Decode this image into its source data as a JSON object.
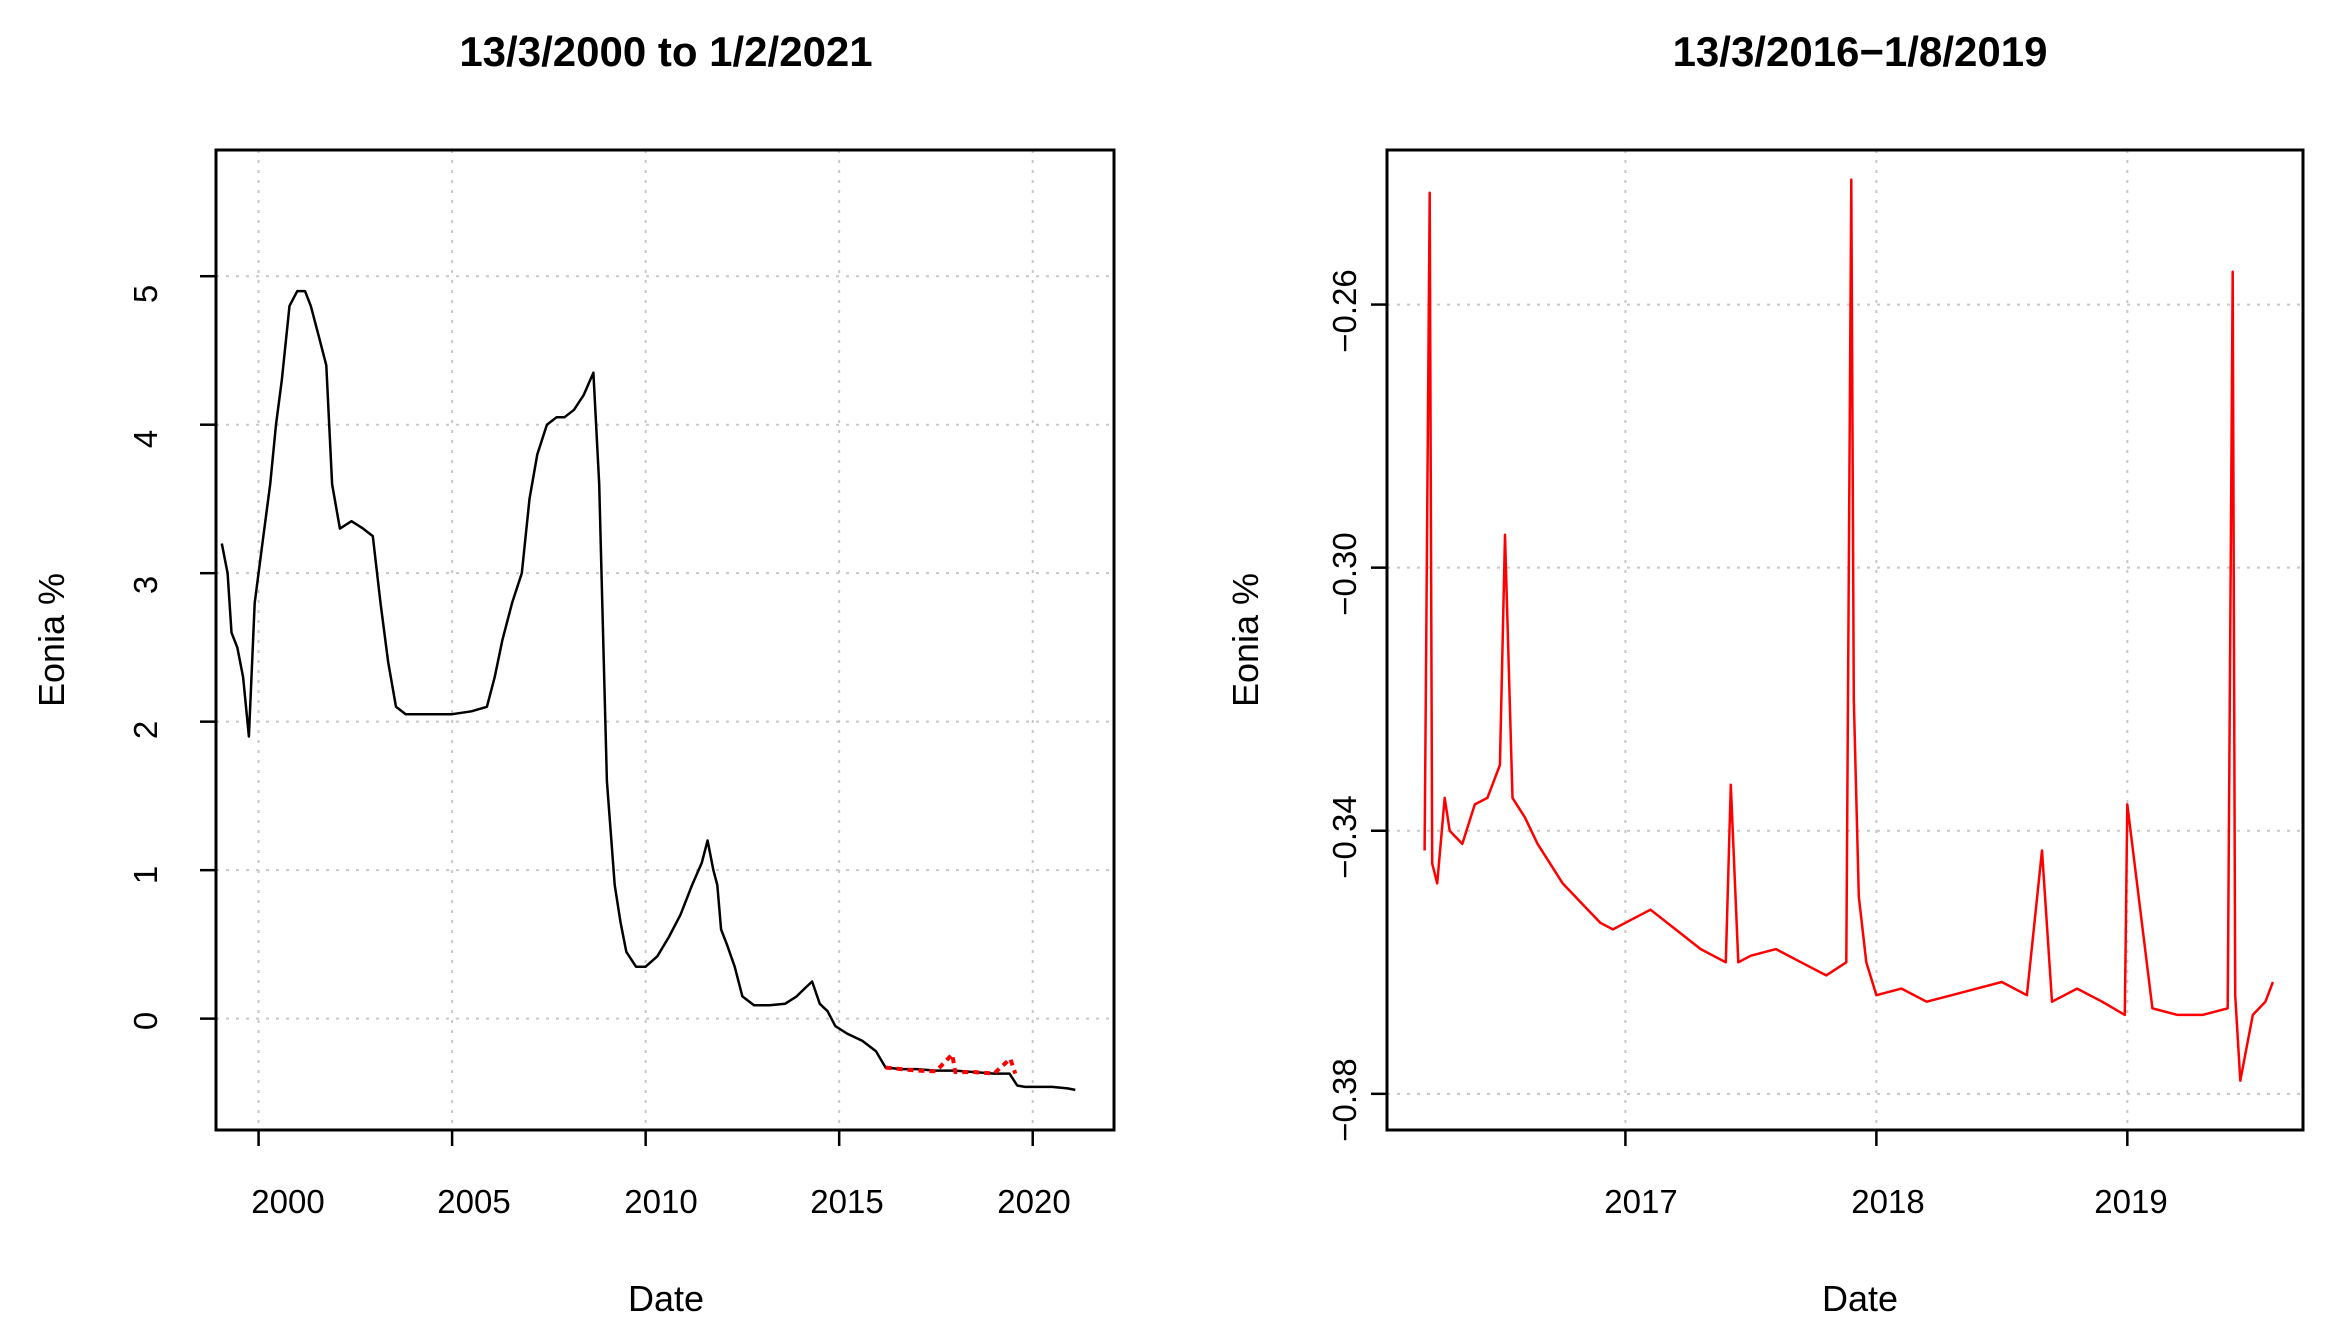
{
  "figure": {
    "background": "#ffffff"
  },
  "chart_data": [
    {
      "type": "line",
      "title": "13/3/2000 to 1/2/2021",
      "xlabel": "Date",
      "ylabel": "Eonia %",
      "xlim": [
        1998.9,
        2022.1
      ],
      "ylim": [
        -0.75,
        5.85
      ],
      "x_ticks": [
        2000,
        2005,
        2010,
        2015,
        2020
      ],
      "x_tick_labels": [
        "2000",
        "2005",
        "2010",
        "2015",
        "2020"
      ],
      "y_ticks": [
        0,
        1,
        2,
        3,
        4,
        5
      ],
      "y_tick_labels": [
        "0",
        "1",
        "2",
        "3",
        "4",
        "5"
      ],
      "grid": true,
      "series": [
        {
          "color": "#000000",
          "x": [
            1999.05,
            1999.2,
            1999.3,
            1999.45,
            1999.6,
            1999.75,
            1999.9,
            2000.1,
            2000.3,
            2000.45,
            2000.6,
            2000.8,
            2001.0,
            2001.2,
            2001.35,
            2001.55,
            2001.75,
            2001.9,
            2002.1,
            2002.4,
            2002.7,
            2002.95,
            2003.15,
            2003.35,
            2003.55,
            2003.8,
            2004.0,
            2004.5,
            2005.0,
            2005.5,
            2005.9,
            2006.1,
            2006.3,
            2006.55,
            2006.8,
            2007.0,
            2007.2,
            2007.45,
            2007.7,
            2007.9,
            2008.15,
            2008.4,
            2008.65,
            2008.8,
            2008.92,
            2009.0,
            2009.1,
            2009.2,
            2009.35,
            2009.5,
            2009.75,
            2010.0,
            2010.3,
            2010.6,
            2010.9,
            2011.2,
            2011.45,
            2011.6,
            2011.75,
            2011.85,
            2011.95,
            2012.1,
            2012.3,
            2012.5,
            2012.8,
            2013.2,
            2013.6,
            2013.9,
            2014.1,
            2014.3,
            2014.5,
            2014.7,
            2014.9,
            2015.2,
            2015.6,
            2015.95,
            2016.2,
            2016.6,
            2017.0,
            2017.5,
            2018.0,
            2018.5,
            2019.0,
            2019.4,
            2019.6,
            2019.8,
            2020.1,
            2020.5,
            2020.9,
            2021.1
          ],
          "y": [
            3.2,
            3.0,
            2.6,
            2.5,
            2.3,
            1.9,
            2.8,
            3.2,
            3.6,
            4.0,
            4.3,
            4.8,
            4.9,
            4.9,
            4.8,
            4.6,
            4.4,
            3.6,
            3.3,
            3.35,
            3.3,
            3.25,
            2.8,
            2.4,
            2.1,
            2.05,
            2.05,
            2.05,
            2.05,
            2.07,
            2.1,
            2.3,
            2.55,
            2.8,
            3.0,
            3.5,
            3.8,
            4.0,
            4.05,
            4.05,
            4.1,
            4.2,
            4.35,
            3.6,
            2.4,
            1.6,
            1.25,
            0.9,
            0.65,
            0.45,
            0.35,
            0.35,
            0.42,
            0.55,
            0.7,
            0.9,
            1.05,
            1.2,
            1.0,
            0.9,
            0.6,
            0.5,
            0.35,
            0.15,
            0.09,
            0.09,
            0.1,
            0.15,
            0.2,
            0.25,
            0.1,
            0.05,
            -0.05,
            -0.1,
            -0.15,
            -0.22,
            -0.33,
            -0.34,
            -0.34,
            -0.35,
            -0.35,
            -0.36,
            -0.37,
            -0.37,
            -0.45,
            -0.46,
            -0.46,
            -0.46,
            -0.47,
            -0.48
          ]
        },
        {
          "color": "#ff0000",
          "x": [
            2016.2,
            2016.6,
            2017.0,
            2017.5,
            2017.92,
            2018.0,
            2018.5,
            2019.0,
            2019.42,
            2019.55
          ],
          "y": [
            -0.33,
            -0.34,
            -0.35,
            -0.355,
            -0.24,
            -0.36,
            -0.36,
            -0.37,
            -0.27,
            -0.37
          ]
        }
      ]
    },
    {
      "type": "line",
      "title": "13/3/2016−1/8/2019",
      "xlabel": "Date",
      "ylabel": "Eonia %",
      "xlim": [
        2016.05,
        2019.7
      ],
      "ylim": [
        -0.3855,
        -0.2365
      ],
      "x_ticks": [
        2017,
        2018,
        2019
      ],
      "x_tick_labels": [
        "2017",
        "2018",
        "2019"
      ],
      "y_ticks": [
        -0.38,
        -0.34,
        -0.3,
        -0.26
      ],
      "y_tick_labels": [
        "−0.38",
        "−0.34",
        "−0.30",
        "−0.26"
      ],
      "grid": true,
      "series": [
        {
          "color": "#ff0000",
          "x": [
            2016.2,
            2016.22,
            2016.23,
            2016.25,
            2016.28,
            2016.3,
            2016.35,
            2016.4,
            2016.45,
            2016.5,
            2016.52,
            2016.55,
            2016.6,
            2016.65,
            2016.7,
            2016.75,
            2016.8,
            2016.85,
            2016.9,
            2016.95,
            2017.0,
            2017.1,
            2017.2,
            2017.3,
            2017.4,
            2017.42,
            2017.45,
            2017.5,
            2017.6,
            2017.7,
            2017.8,
            2017.88,
            2017.9,
            2017.91,
            2017.93,
            2017.96,
            2018.0,
            2018.1,
            2018.2,
            2018.3,
            2018.4,
            2018.5,
            2018.6,
            2018.66,
            2018.7,
            2018.8,
            2018.9,
            2018.99,
            2019.0,
            2019.1,
            2019.2,
            2019.3,
            2019.4,
            2019.42,
            2019.43,
            2019.45,
            2019.5,
            2019.55,
            2019.58
          ],
          "y": [
            -0.343,
            -0.243,
            -0.345,
            -0.348,
            -0.335,
            -0.34,
            -0.342,
            -0.336,
            -0.335,
            -0.33,
            -0.295,
            -0.335,
            -0.338,
            -0.342,
            -0.345,
            -0.348,
            -0.35,
            -0.352,
            -0.354,
            -0.355,
            -0.354,
            -0.352,
            -0.355,
            -0.358,
            -0.36,
            -0.333,
            -0.36,
            -0.359,
            -0.358,
            -0.36,
            -0.362,
            -0.36,
            -0.241,
            -0.32,
            -0.35,
            -0.36,
            -0.365,
            -0.364,
            -0.366,
            -0.365,
            -0.364,
            -0.363,
            -0.365,
            -0.343,
            -0.366,
            -0.364,
            -0.366,
            -0.368,
            -0.336,
            -0.367,
            -0.368,
            -0.368,
            -0.367,
            -0.255,
            -0.365,
            -0.378,
            -0.368,
            -0.366,
            -0.363
          ]
        }
      ]
    }
  ]
}
